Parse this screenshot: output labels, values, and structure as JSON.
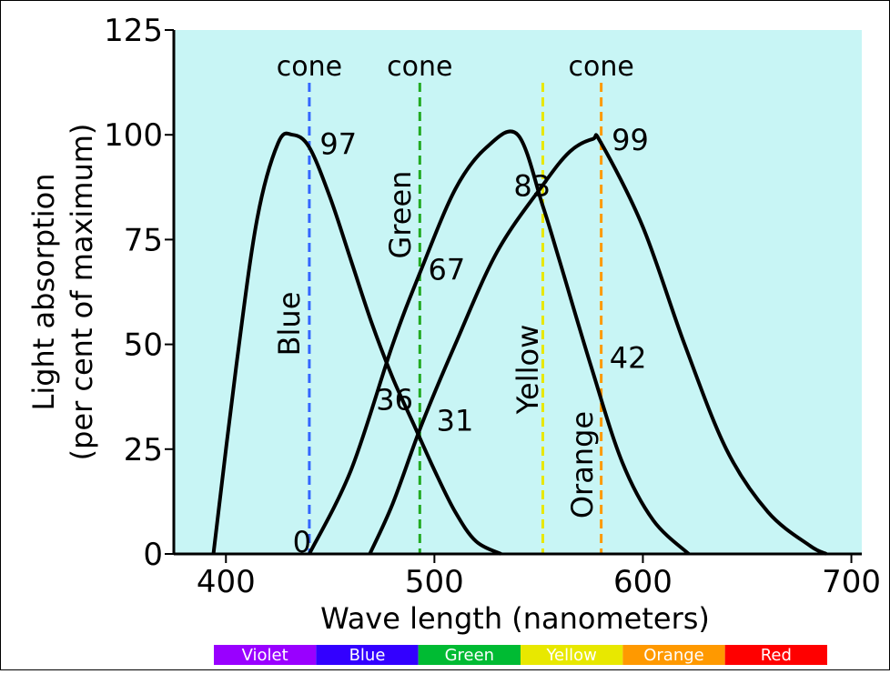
{
  "chart_data": {
    "type": "line",
    "ylabel_line1": "Light absorption",
    "ylabel_line2": "(per cent of maximum)",
    "xlabel": "Wave length (nanometers)",
    "xlim": [
      375,
      705
    ],
    "ylim": [
      0,
      125
    ],
    "x_ticks": [
      "400",
      "500",
      "600",
      "700"
    ],
    "y_ticks": [
      "0",
      "25",
      "50",
      "75",
      "100",
      "125"
    ],
    "background_color": "#c8f5f5",
    "series": [
      {
        "x": [
          394,
          405,
          415,
          425,
          432,
          440,
          450,
          460,
          470,
          480,
          490,
          500,
          510,
          520,
          532
        ],
        "values": [
          0,
          45,
          80,
          98,
          100,
          97,
          85,
          70,
          55,
          42,
          31,
          20,
          10,
          3,
          0
        ]
      },
      {
        "x": [
          440,
          460,
          480,
          493,
          510,
          525,
          540,
          552,
          560,
          575,
          590,
          605,
          622
        ],
        "values": [
          0,
          20,
          50,
          67,
          87,
          97,
          100,
          83,
          70,
          45,
          22,
          8,
          0
        ]
      },
      {
        "x": [
          469,
          480,
          494,
          510,
          530,
          552,
          565,
          576,
          580,
          600,
          620,
          640,
          660,
          680,
          688
        ],
        "values": [
          0,
          12,
          31,
          50,
          72,
          88,
          96,
          99,
          98,
          78,
          50,
          25,
          10,
          2,
          0
        ]
      }
    ],
    "reference_lines": [
      {
        "x": 440,
        "color": "#3366ff",
        "label": "Blue",
        "top_label": "cone"
      },
      {
        "x": 493,
        "color": "#22aa22",
        "label": "Green",
        "top_label": "cone"
      },
      {
        "x": 552,
        "color": "#e8e800",
        "label": "Yellow",
        "top_label": ""
      },
      {
        "x": 580,
        "color": "#ff9900",
        "label": "Orange",
        "top_label": "cone"
      }
    ],
    "annotations": [
      {
        "text": "97",
        "x": 445,
        "y": 98
      },
      {
        "text": "67",
        "x": 497,
        "y": 68
      },
      {
        "text": "83",
        "x": 538,
        "y": 88
      },
      {
        "text": "99",
        "x": 585,
        "y": 99
      },
      {
        "text": "36",
        "x": 472,
        "y": 37
      },
      {
        "text": "31",
        "x": 501,
        "y": 32
      },
      {
        "text": "42",
        "x": 584,
        "y": 47
      },
      {
        "text": "0",
        "x": 432,
        "y": 3
      }
    ],
    "spectrum": [
      {
        "label": "Violet",
        "color": "#9900ff"
      },
      {
        "label": "Blue",
        "color": "#3300ff"
      },
      {
        "label": "Green",
        "color": "#00bb33"
      },
      {
        "label": "Yellow",
        "color": "#e8e800"
      },
      {
        "label": "Orange",
        "color": "#ff9900"
      },
      {
        "label": "Red",
        "color": "#ff0000"
      }
    ]
  }
}
